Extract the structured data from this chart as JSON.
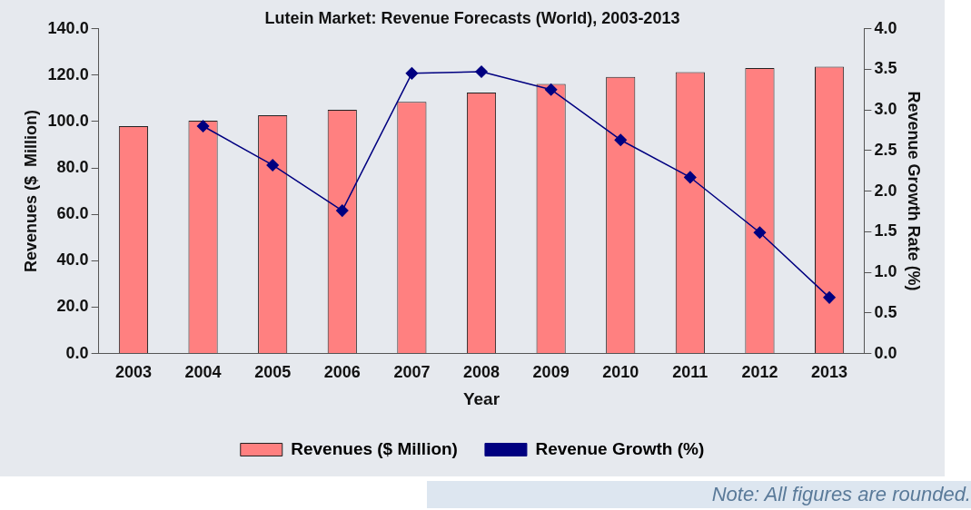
{
  "chart_data": {
    "type": "bar",
    "title": "Lutein Market: Revenue Forecasts (World), 2003-2013",
    "xlabel": "Year",
    "ylabel": "Revenues ($  Million)",
    "y2label": "Revenue Growth Rate (%)",
    "categories": [
      "2003",
      "2004",
      "2005",
      "2006",
      "2007",
      "2008",
      "2009",
      "2010",
      "2011",
      "2012",
      "2013"
    ],
    "series": [
      {
        "name": "Revenues ($ Million)",
        "color": "#ff8080",
        "values": [
          98.0,
          100.3,
          102.7,
          105.0,
          108.5,
          112.5,
          116.2,
          119.2,
          121.3,
          123.0,
          123.6
        ]
      },
      {
        "name": "Revenue Growth (%)",
        "type": "line",
        "axis": "y2",
        "color": "#000080",
        "marker": "diamond",
        "values": [
          null,
          2.8,
          2.32,
          1.76,
          3.45,
          3.47,
          3.25,
          2.63,
          2.17,
          1.49,
          0.69
        ]
      }
    ],
    "ylim": [
      0,
      140
    ],
    "yticks": [
      {
        "value": 0,
        "label": "0.0"
      },
      {
        "value": 20,
        "label": "20.0"
      },
      {
        "value": 40,
        "label": "40.0"
      },
      {
        "value": 60,
        "label": "60.0"
      },
      {
        "value": 80,
        "label": "80.0"
      },
      {
        "value": 100,
        "label": "100.0"
      },
      {
        "value": 120,
        "label": "120.0"
      },
      {
        "value": 140,
        "label": "140.0"
      }
    ],
    "y2lim": [
      0,
      4
    ],
    "y2ticks": [
      {
        "value": 0,
        "label": "0.0"
      },
      {
        "value": 0.5,
        "label": "0.5"
      },
      {
        "value": 1,
        "label": "1.0"
      },
      {
        "value": 1.5,
        "label": "1.5"
      },
      {
        "value": 2,
        "label": "2.0"
      },
      {
        "value": 2.5,
        "label": "2.5"
      },
      {
        "value": 3,
        "label": "3.0"
      },
      {
        "value": 3.5,
        "label": "3.5"
      },
      {
        "value": 4,
        "label": "4.0"
      }
    ],
    "grid": false,
    "legend": "bottom",
    "annotations": [
      "Note: All figures are rounded."
    ]
  }
}
